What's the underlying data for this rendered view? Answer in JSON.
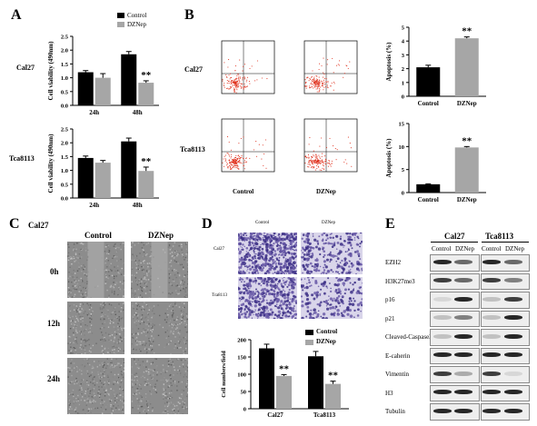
{
  "panels": {
    "a": "A",
    "b": "B",
    "c": "C",
    "d": "D",
    "e": "E"
  },
  "panel_a": {
    "legend": [
      "Control",
      "DZNep"
    ],
    "row_labels": [
      "Cal27",
      "Tca8113"
    ],
    "ylabel": "Cell viability (490nm)",
    "sig": "**"
  },
  "panel_b": {
    "row_labels": [
      "Cal27",
      "Tca8113"
    ],
    "col_labels": [
      "Control",
      "DZNep"
    ],
    "ylabel": "Apoptosis (%)",
    "sig": "**"
  },
  "panel_c": {
    "title": "Cal27",
    "cols": [
      "Control",
      "DZNep"
    ],
    "rows": [
      "0h",
      "12h",
      "24h"
    ]
  },
  "panel_d": {
    "cols": [
      "Control",
      "DZNep"
    ],
    "rows": [
      "Cal27",
      "Tca8113"
    ],
    "legend": [
      "Control",
      "DZNep"
    ],
    "ylabel": "Cell numbers/field",
    "sig": "**"
  },
  "panel_e": {
    "groups": [
      "Cal27",
      "Tca8113"
    ],
    "lanes": [
      "Control",
      "DZNep",
      "Control",
      "DZNep"
    ],
    "proteins": [
      "EZH2",
      "H3K27me3",
      "p16",
      "p21",
      "Cleaved-Caspase3",
      "E-caherin",
      "Vimentin",
      "H3",
      "Tubulin"
    ]
  },
  "colors": {
    "control": "#000000",
    "dznep": "#a6a6a6",
    "flow_dots": "#e0321e",
    "crystal_violet": "#6a5aa8"
  },
  "chart_data": [
    {
      "id": "A1",
      "type": "bar",
      "categories": [
        "24h",
        "48h"
      ],
      "series": [
        {
          "name": "Control",
          "values": [
            1.2,
            1.85
          ],
          "errors": [
            0.06,
            0.1
          ]
        },
        {
          "name": "DZNep",
          "values": [
            1.0,
            0.82
          ],
          "errors": [
            0.15,
            0.07
          ]
        }
      ],
      "ylim": [
        0,
        2.5
      ],
      "yticks": [
        "0.0",
        "0.5",
        "1.0",
        "1.5",
        "2.0",
        "2.5"
      ],
      "ylabel": "Cell viability (490nm)",
      "sig_index": [
        1
      ]
    },
    {
      "id": "A2",
      "type": "bar",
      "categories": [
        "24h",
        "48h"
      ],
      "series": [
        {
          "name": "Control",
          "values": [
            1.45,
            2.05
          ],
          "errors": [
            0.07,
            0.12
          ]
        },
        {
          "name": "DZNep",
          "values": [
            1.28,
            0.98
          ],
          "errors": [
            0.08,
            0.14
          ]
        }
      ],
      "ylim": [
        0,
        2.5
      ],
      "yticks": [
        "0.0",
        "0.5",
        "1.0",
        "1.5",
        "2.0",
        "2.5"
      ],
      "ylabel": "Cell viability (490nm)",
      "sig_index": [
        1
      ]
    },
    {
      "id": "B1",
      "type": "bar",
      "categories": [
        "Control",
        "DZNep"
      ],
      "series": [
        {
          "name": "",
          "values": [
            2.1,
            4.2
          ],
          "errors": [
            0.15,
            0.1
          ]
        }
      ],
      "ylim": [
        0,
        5
      ],
      "yticks": [
        "0",
        "1",
        "2",
        "3",
        "4",
        "5"
      ],
      "ylabel": "Apoptosis (%)",
      "sig_index": [
        1
      ]
    },
    {
      "id": "B2",
      "type": "bar",
      "categories": [
        "Control",
        "DZNep"
      ],
      "series": [
        {
          "name": "",
          "values": [
            1.8,
            9.8
          ],
          "errors": [
            0.1,
            0.2
          ]
        }
      ],
      "ylim": [
        0,
        15
      ],
      "yticks": [
        "0",
        "5",
        "10",
        "15"
      ],
      "ylabel": "Apoptosis (%)",
      "sig_index": [
        1
      ]
    },
    {
      "id": "D1",
      "type": "bar",
      "categories": [
        "Cal27",
        "Tca8113"
      ],
      "series": [
        {
          "name": "Control",
          "values": [
            175,
            152
          ],
          "errors": [
            12,
            14
          ]
        },
        {
          "name": "DZNep",
          "values": [
            95,
            72
          ],
          "errors": [
            4,
            8
          ]
        }
      ],
      "ylim": [
        0,
        200
      ],
      "yticks": [
        "0",
        "50",
        "100",
        "150",
        "200"
      ],
      "ylabel": "Cell numbers/field",
      "sig_index": [
        0,
        1
      ]
    }
  ]
}
